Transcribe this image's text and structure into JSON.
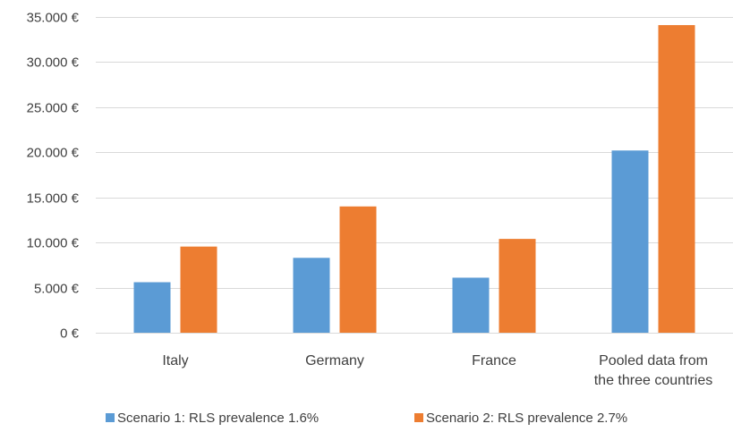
{
  "chart_data": {
    "type": "bar",
    "title": "",
    "xlabel": "",
    "ylabel": "",
    "categories": [
      [
        "Italy"
      ],
      [
        "Germany"
      ],
      [
        "France"
      ],
      [
        "Pooled data from",
        "the three countries"
      ]
    ],
    "series": [
      {
        "name": "Scenario 1: RLS prevalence 1.6%",
        "color": "#5B9BD5",
        "values": [
          5600,
          8300,
          6100,
          20200
        ]
      },
      {
        "name": "Scenario 2: RLS prevalence 2.7%",
        "color": "#ED7D31",
        "values": [
          9550,
          14000,
          10400,
          34100
        ]
      }
    ],
    "ylim": [
      0,
      35000
    ],
    "yticks": [
      0,
      5000,
      10000,
      15000,
      20000,
      25000,
      30000,
      35000
    ],
    "ytick_labels": [
      "0 €",
      "5.000 €",
      "10.000 €",
      "15.000 €",
      "20.000 €",
      "25.000 €",
      "30.000 €",
      "35.000 €"
    ],
    "grid": true,
    "gridline_color": "#D9D9D9",
    "legend_position": "bottom"
  }
}
